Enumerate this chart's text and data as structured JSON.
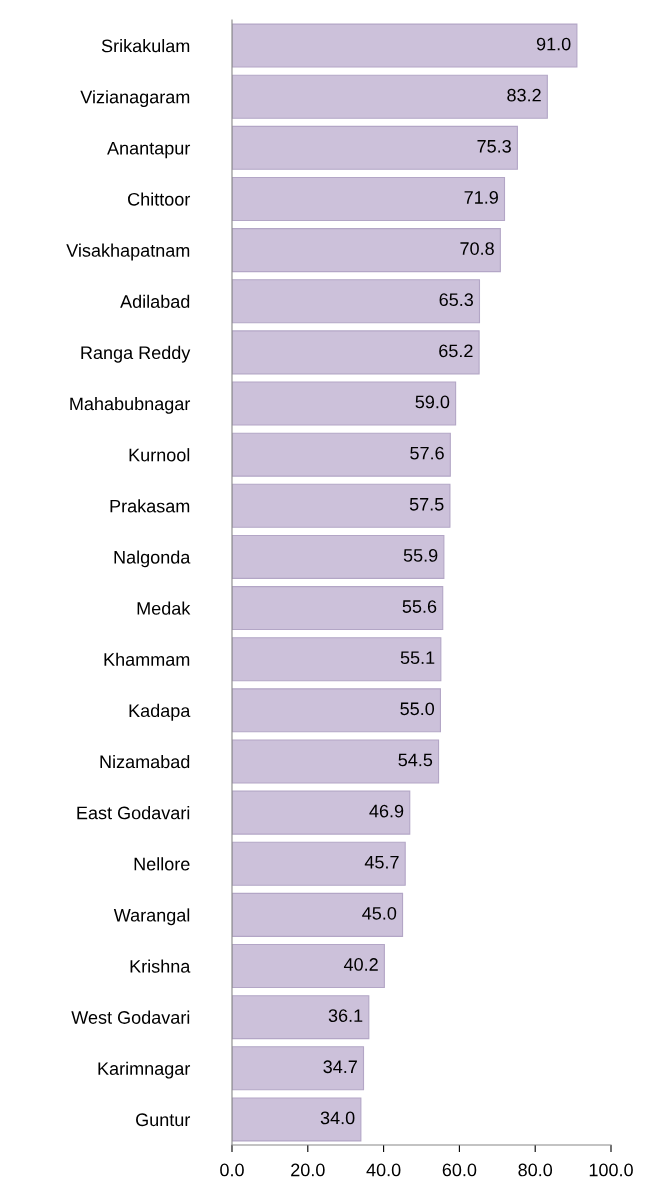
{
  "chart_data": {
    "type": "bar",
    "orientation": "horizontal",
    "categories": [
      "Srikakulam",
      "Vizianagaram",
      "Anantapur",
      "Chittoor",
      "Visakhapatnam",
      "Adilabad",
      "Ranga Reddy",
      "Mahabubnagar",
      "Kurnool",
      "Prakasam",
      "Nalgonda",
      "Medak",
      "Khammam",
      "Kadapa",
      "Nizamabad",
      "East Godavari",
      "Nellore",
      "Warangal",
      "Krishna",
      "West Godavari",
      "Karimnagar",
      "Guntur"
    ],
    "values": [
      91.0,
      83.2,
      75.3,
      71.9,
      70.8,
      65.3,
      65.2,
      59.0,
      57.6,
      57.5,
      55.9,
      55.6,
      55.1,
      55.0,
      54.5,
      46.9,
      45.7,
      45.0,
      40.2,
      36.1,
      34.7,
      34.0
    ],
    "value_labels": [
      "91.0",
      "83.2",
      "75.3",
      "71.9",
      "70.8",
      "65.3",
      "65.2",
      "59.0",
      "57.6",
      "57.5",
      "55.9",
      "55.6",
      "55.1",
      "55.0",
      "54.5",
      "46.9",
      "45.7",
      "45.0",
      "40.2",
      "36.1",
      "34.7",
      "34.0"
    ],
    "color": "#ccc1da",
    "xlim": [
      0,
      100
    ],
    "xticks": [
      {
        "value": 0,
        "label": "0.0"
      },
      {
        "value": 20,
        "label": "20.0"
      },
      {
        "value": 40,
        "label": "40.0"
      },
      {
        "value": 60,
        "label": "60.0"
      },
      {
        "value": 80,
        "label": "80.0"
      },
      {
        "value": 100,
        "label": "100.0"
      }
    ],
    "grid": false,
    "legend": false
  }
}
